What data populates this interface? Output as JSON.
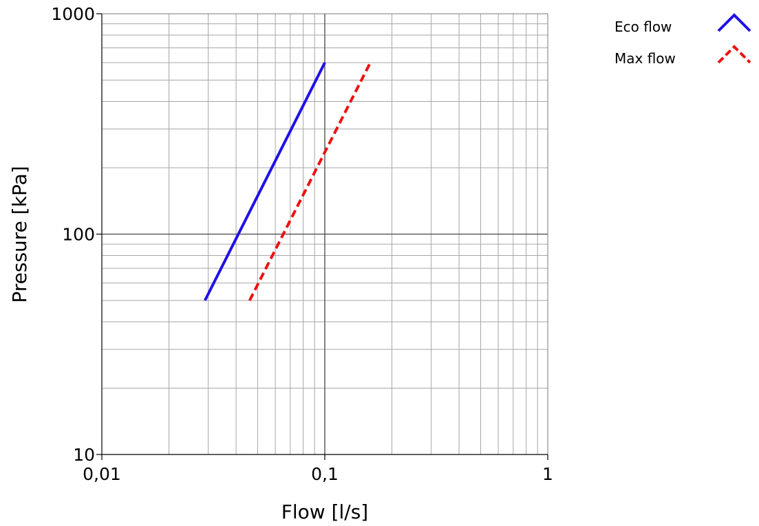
{
  "chart_data": {
    "type": "line",
    "title": "",
    "xlabel": "Flow [l/s]",
    "ylabel": "Pressure [kPa]",
    "x_scale": "log",
    "y_scale": "log",
    "xlim": [
      0.01,
      1
    ],
    "ylim": [
      10,
      1000
    ],
    "x_ticks": [
      0.01,
      0.1,
      1
    ],
    "x_tick_labels": [
      "0,01",
      "0,1",
      "1"
    ],
    "y_ticks": [
      10,
      100,
      1000
    ],
    "y_tick_labels": [
      "10",
      "100",
      "1000"
    ],
    "grid": true,
    "legend_position": "top-right, outside plot",
    "series": [
      {
        "name": "Eco flow",
        "color": "#1f10e8",
        "line_style": "solid",
        "x": [
          0.029,
          0.1
        ],
        "y": [
          50,
          600
        ]
      },
      {
        "name": "Max flow",
        "color": "#ee1111",
        "line_style": "dashed",
        "x": [
          0.046,
          0.16
        ],
        "y": [
          50,
          600
        ]
      }
    ]
  }
}
